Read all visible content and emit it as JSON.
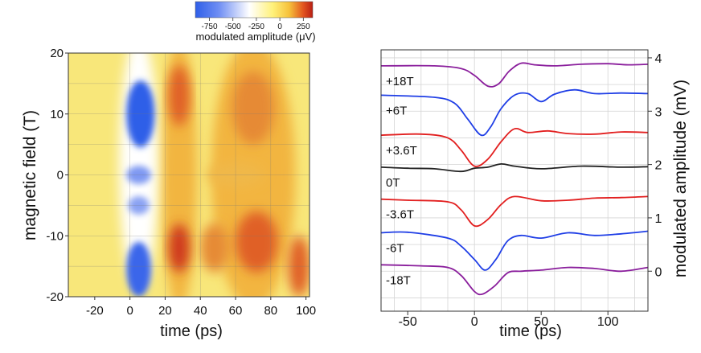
{
  "chart_data": [
    {
      "type": "heatmap",
      "xlabel": "time (ps)",
      "ylabel": "magnetic field (T)",
      "xlim": [
        -35,
        102
      ],
      "ylim": [
        -20,
        20
      ],
      "xticks": [
        -20,
        0,
        20,
        40,
        60,
        80,
        100
      ],
      "yticks": [
        20,
        10,
        0,
        -10,
        -20
      ],
      "colorbar": {
        "label": "modulated amplitude (μV)",
        "range": [
          -900,
          350
        ],
        "ticks": [
          -750,
          -500,
          -250,
          0,
          250
        ],
        "colors": [
          "#2f5fe8",
          "#6f8ef4",
          "#ffffff",
          "#fff17a",
          "#f6c13a",
          "#e2541f",
          "#b81e14"
        ],
        "stops": [
          0,
          0.2,
          0.46,
          0.66,
          0.8,
          0.92,
          1
        ]
      },
      "features": {
        "negative_dip": {
          "t_center": 6,
          "fields": [
            10,
            -15,
            0,
            -5
          ],
          "min_value_uV": -750
        },
        "positive_peaks": {
          "t_centers": [
            28,
            70
          ],
          "fields": [
            12,
            -12,
            0,
            -5
          ],
          "max_value_uV": 250
        }
      }
    },
    {
      "type": "line",
      "xlabel": "time (ps)",
      "ylabel": "modulated amplitude (mV)",
      "xlim": [
        -70,
        130
      ],
      "ylim": [
        -0.75,
        4.15
      ],
      "xticks": [
        -50,
        0,
        50,
        100
      ],
      "yticks": [
        0,
        1,
        2,
        3,
        4
      ],
      "grid": true,
      "series": [
        {
          "name": "+18T",
          "color": "#8a1e9c",
          "offset": 3.85,
          "points": [
            [
              -70,
              0
            ],
            [
              -30,
              0
            ],
            [
              -10,
              -0.05
            ],
            [
              0,
              -0.18
            ],
            [
              10,
              -0.38
            ],
            [
              18,
              -0.34
            ],
            [
              26,
              -0.1
            ],
            [
              35,
              0.05
            ],
            [
              45,
              0.02
            ],
            [
              60,
              0
            ],
            [
              80,
              0.03
            ],
            [
              100,
              0.04
            ],
            [
              115,
              0.02
            ],
            [
              130,
              0.03
            ]
          ]
        },
        {
          "name": "+6T",
          "color": "#1f3ee6",
          "offset": 3.3,
          "points": [
            [
              -70,
              0
            ],
            [
              -30,
              -0.04
            ],
            [
              -15,
              -0.15
            ],
            [
              -5,
              -0.45
            ],
            [
              5,
              -0.75
            ],
            [
              12,
              -0.6
            ],
            [
              20,
              -0.25
            ],
            [
              30,
              0
            ],
            [
              40,
              0.03
            ],
            [
              50,
              -0.12
            ],
            [
              60,
              0.02
            ],
            [
              75,
              0.1
            ],
            [
              90,
              0.03
            ],
            [
              110,
              0.04
            ],
            [
              130,
              0.03
            ]
          ]
        },
        {
          "name": "+3.6T",
          "color": "#e21f1f",
          "offset": 2.55,
          "points": [
            [
              -70,
              0
            ],
            [
              -40,
              0.02
            ],
            [
              -20,
              -0.05
            ],
            [
              -10,
              -0.28
            ],
            [
              0,
              -0.58
            ],
            [
              10,
              -0.45
            ],
            [
              20,
              -0.12
            ],
            [
              30,
              0.12
            ],
            [
              40,
              0.05
            ],
            [
              55,
              0.08
            ],
            [
              70,
              0.03
            ],
            [
              90,
              0.02
            ],
            [
              110,
              0.06
            ],
            [
              130,
              0.05
            ]
          ]
        },
        {
          "name": "0T",
          "color": "#222222",
          "offset": 1.95,
          "points": [
            [
              -70,
              0
            ],
            [
              -50,
              -0.02
            ],
            [
              -30,
              -0.03
            ],
            [
              -10,
              -0.08
            ],
            [
              0,
              -0.02
            ],
            [
              10,
              0
            ],
            [
              20,
              0.06
            ],
            [
              30,
              0.02
            ],
            [
              50,
              -0.03
            ],
            [
              80,
              0.02
            ],
            [
              110,
              0
            ],
            [
              130,
              0.01
            ]
          ]
        },
        {
          "name": "-3.6T",
          "color": "#e21f1f",
          "offset": 1.35,
          "points": [
            [
              -70,
              0
            ],
            [
              -50,
              -0.02
            ],
            [
              -20,
              -0.05
            ],
            [
              -10,
              -0.2
            ],
            [
              0,
              -0.5
            ],
            [
              10,
              -0.38
            ],
            [
              20,
              -0.1
            ],
            [
              30,
              0.05
            ],
            [
              50,
              -0.03
            ],
            [
              70,
              -0.02
            ],
            [
              90,
              0.02
            ],
            [
              110,
              0.03
            ],
            [
              130,
              0.05
            ]
          ]
        },
        {
          "name": "-6T",
          "color": "#1f3ee6",
          "offset": 0.72,
          "points": [
            [
              -70,
              0
            ],
            [
              -50,
              0.01
            ],
            [
              -20,
              -0.1
            ],
            [
              -10,
              -0.25
            ],
            [
              0,
              -0.5
            ],
            [
              8,
              -0.7
            ],
            [
              16,
              -0.5
            ],
            [
              25,
              -0.15
            ],
            [
              35,
              -0.05
            ],
            [
              50,
              -0.1
            ],
            [
              70,
              0
            ],
            [
              90,
              -0.05
            ],
            [
              110,
              -0.02
            ],
            [
              130,
              0.03
            ]
          ]
        },
        {
          "name": "-18T",
          "color": "#8a1e9c",
          "offset": 0.12,
          "points": [
            [
              -70,
              0
            ],
            [
              -40,
              -0.02
            ],
            [
              -20,
              -0.05
            ],
            [
              -10,
              -0.2
            ],
            [
              0,
              -0.5
            ],
            [
              6,
              -0.55
            ],
            [
              15,
              -0.4
            ],
            [
              25,
              -0.15
            ],
            [
              35,
              -0.12
            ],
            [
              50,
              -0.1
            ],
            [
              70,
              -0.05
            ],
            [
              90,
              -0.07
            ],
            [
              110,
              -0.12
            ],
            [
              130,
              -0.05
            ]
          ]
        }
      ]
    }
  ]
}
